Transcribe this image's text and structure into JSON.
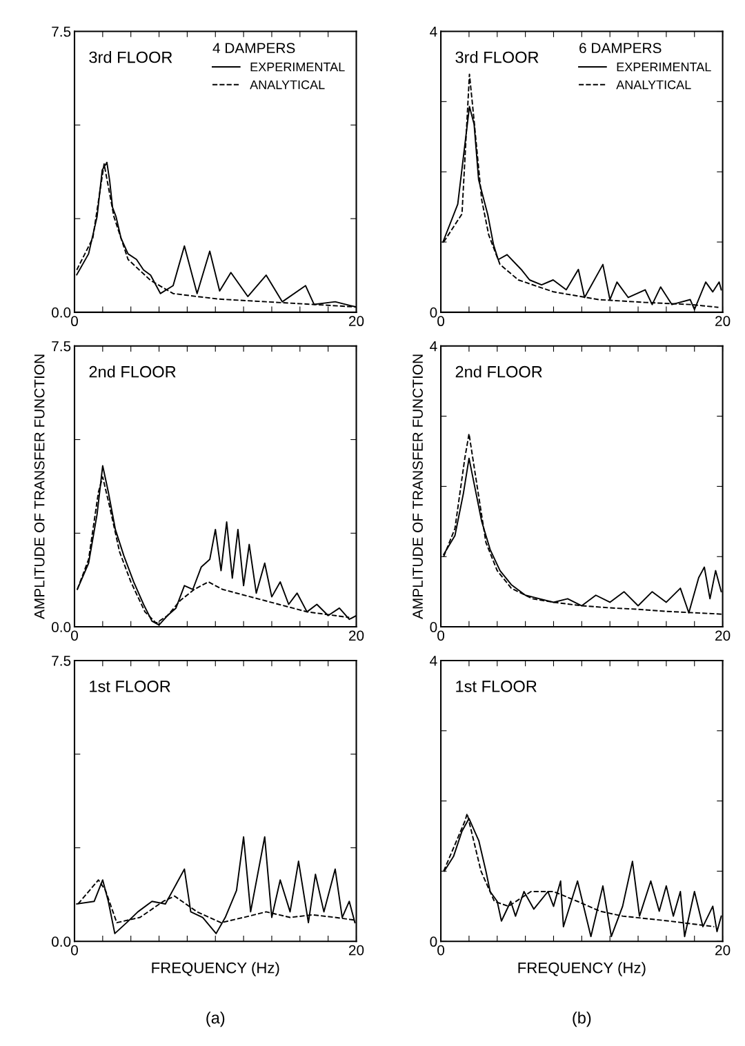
{
  "chart_data": [
    {
      "type": "line",
      "title": "3rd FLOOR",
      "legend_title": "4 DAMPERS",
      "legend": "top right",
      "xlim": [
        0,
        20
      ],
      "ylim": [
        0,
        7.5
      ],
      "xticks": [
        0,
        {
          "value": 2,
          "label": null
        },
        {
          "value": 4,
          "label": null
        },
        {
          "value": 6,
          "label": null
        },
        {
          "value": 8,
          "label": null
        },
        {
          "value": 10,
          "label": null
        },
        {
          "value": 12,
          "label": null
        },
        {
          "value": 14,
          "label": null
        },
        {
          "value": 16,
          "label": null
        },
        {
          "value": 18,
          "label": null
        },
        20
      ],
      "yticks": [
        {
          "value": 0,
          "label": "0.0"
        },
        {
          "value": 2.5,
          "label": null
        },
        {
          "value": 5,
          "label": null
        },
        7.5
      ],
      "series": [
        {
          "name": "EXPERIMENTAL",
          "color": "#000000",
          "line_style": "solid",
          "x": [
            0.16,
            1.0,
            1.6,
            1.97,
            2.3,
            2.5,
            2.7,
            2.95,
            3.3,
            3.8,
            4.4,
            4.9,
            5.4,
            6.1,
            7.0,
            7.8,
            8.7,
            9.6,
            10.3,
            11.1,
            12.3,
            13.6,
            14.75,
            16.4,
            17.0,
            18.5,
            20.0
          ],
          "values": [
            1.0,
            1.56,
            2.55,
            3.8,
            4.0,
            3.5,
            2.8,
            2.55,
            1.98,
            1.56,
            1.41,
            1.13,
            0.99,
            0.5,
            0.71,
            1.77,
            0.5,
            1.63,
            0.57,
            1.06,
            0.42,
            0.99,
            0.28,
            0.71,
            0.21,
            0.28,
            0.14
          ]
        },
        {
          "name": "ANALYTICAL",
          "color": "#000000",
          "line_style": "dashed",
          "x": [
            0.16,
            1.3,
            2.1,
            2.8,
            3.8,
            5.4,
            7.0,
            8.7,
            10.3,
            13.6,
            16.9,
            20.0
          ],
          "values": [
            1.13,
            1.98,
            3.96,
            2.55,
            1.41,
            0.85,
            0.5,
            0.42,
            0.35,
            0.28,
            0.21,
            0.14
          ]
        }
      ]
    },
    {
      "type": "line",
      "title": "3rd FLOOR",
      "legend_title": "6 DAMPERS",
      "legend": "top right",
      "xlim": [
        0,
        20
      ],
      "ylim": [
        0,
        4
      ],
      "xticks": [
        0,
        {
          "value": 2,
          "label": null
        },
        {
          "value": 4,
          "label": null
        },
        {
          "value": 6,
          "label": null
        },
        {
          "value": 8,
          "label": null
        },
        {
          "value": 10,
          "label": null
        },
        {
          "value": 12,
          "label": null
        },
        {
          "value": 14,
          "label": null
        },
        {
          "value": 16,
          "label": null
        },
        {
          "value": 18,
          "label": null
        },
        20
      ],
      "yticks": [
        0,
        {
          "value": 1,
          "label": null
        },
        {
          "value": 2,
          "label": null
        },
        {
          "value": 3,
          "label": null
        },
        4
      ],
      "series": [
        {
          "name": "EXPERIMENTAL",
          "color": "#000000",
          "line_style": "solid",
          "x": [
            0.15,
            1.2,
            2.03,
            2.36,
            2.68,
            3.33,
            3.74,
            4.07,
            4.7,
            5.7,
            6.3,
            7.15,
            7.97,
            8.9,
            9.76,
            10.2,
            11.5,
            12.0,
            12.5,
            13.3,
            14.5,
            15.0,
            15.6,
            16.4,
            17.7,
            18.0,
            18.8,
            19.3,
            19.75,
            19.9
          ],
          "values": [
            1.0,
            1.54,
            2.93,
            2.68,
            1.89,
            1.39,
            0.96,
            0.75,
            0.82,
            0.61,
            0.46,
            0.39,
            0.46,
            0.32,
            0.61,
            0.21,
            0.68,
            0.18,
            0.43,
            0.21,
            0.32,
            0.11,
            0.36,
            0.11,
            0.18,
            0.04,
            0.43,
            0.29,
            0.43,
            0.32
          ]
        },
        {
          "name": "ANALYTICAL",
          "color": "#000000",
          "line_style": "dashed",
          "x": [
            0.2,
            1.5,
            2.03,
            2.28,
            2.9,
            3.4,
            4.2,
            5.5,
            8.0,
            11.2,
            14.5,
            17.7,
            19.7
          ],
          "values": [
            1.0,
            1.4,
            3.39,
            2.89,
            1.6,
            1.1,
            0.68,
            0.46,
            0.29,
            0.18,
            0.14,
            0.11,
            0.07
          ]
        }
      ]
    },
    {
      "type": "line",
      "title": "2nd FLOOR",
      "ylabel": "AMPLITUDE OF TRANSFER FUNCTION",
      "xlim": [
        0,
        20
      ],
      "ylim": [
        0,
        7.5
      ],
      "xticks": [
        0,
        {
          "value": 2,
          "label": null
        },
        {
          "value": 4,
          "label": null
        },
        {
          "value": 6,
          "label": null
        },
        {
          "value": 8,
          "label": null
        },
        {
          "value": 10,
          "label": null
        },
        {
          "value": 12,
          "label": null
        },
        {
          "value": 14,
          "label": null
        },
        {
          "value": 16,
          "label": null
        },
        {
          "value": 18,
          "label": null
        },
        20
      ],
      "yticks": [
        {
          "value": 0,
          "label": "0.0"
        },
        {
          "value": 2.5,
          "label": null
        },
        {
          "value": 5,
          "label": null
        },
        7.5
      ],
      "series": [
        {
          "color": "#000000",
          "line_style": "solid",
          "x": [
            0.2,
            1.0,
            1.6,
            2.0,
            2.4,
            2.9,
            3.5,
            4.2,
            4.9,
            5.5,
            6.0,
            6.6,
            7.2,
            7.8,
            8.4,
            9.0,
            9.6,
            10.0,
            10.4,
            10.8,
            11.2,
            11.6,
            12.0,
            12.4,
            12.9,
            13.5,
            14.0,
            14.6,
            15.2,
            15.8,
            16.5,
            17.2,
            18.0,
            18.8,
            19.5,
            20.0
          ],
          "values": [
            1.0,
            1.7,
            3.0,
            4.3,
            3.6,
            2.6,
            1.9,
            1.2,
            0.6,
            0.15,
            0.05,
            0.3,
            0.5,
            1.1,
            1.0,
            1.6,
            1.8,
            2.6,
            1.5,
            2.8,
            1.3,
            2.6,
            1.1,
            2.2,
            0.9,
            1.7,
            0.8,
            1.2,
            0.6,
            0.9,
            0.4,
            0.6,
            0.3,
            0.5,
            0.2,
            0.3
          ]
        },
        {
          "color": "#000000",
          "line_style": "dashed",
          "x": [
            0.2,
            1.0,
            1.7,
            2.0,
            2.5,
            3.2,
            4.0,
            5.0,
            5.8,
            6.6,
            7.5,
            8.5,
            9.5,
            10.5,
            11.5,
            12.5,
            13.5,
            14.5,
            15.5,
            16.5,
            17.5,
            18.5,
            19.5
          ],
          "values": [
            1.0,
            1.8,
            3.6,
            4.0,
            3.2,
            2.0,
            1.2,
            0.4,
            0.1,
            0.3,
            0.7,
            1.0,
            1.2,
            1.0,
            0.9,
            0.8,
            0.7,
            0.6,
            0.5,
            0.4,
            0.35,
            0.3,
            0.25
          ]
        }
      ]
    },
    {
      "type": "line",
      "title": "2nd FLOOR",
      "ylabel": "AMPLITUDE OF TRANSFER FUNCTION",
      "xlim": [
        0,
        20
      ],
      "ylim": [
        0,
        4
      ],
      "xticks": [
        0,
        {
          "value": 2,
          "label": null
        },
        {
          "value": 4,
          "label": null
        },
        {
          "value": 6,
          "label": null
        },
        {
          "value": 8,
          "label": null
        },
        {
          "value": 10,
          "label": null
        },
        {
          "value": 12,
          "label": null
        },
        {
          "value": 14,
          "label": null
        },
        {
          "value": 16,
          "label": null
        },
        {
          "value": 18,
          "label": null
        },
        20
      ],
      "yticks": [
        0,
        {
          "value": 1,
          "label": null
        },
        {
          "value": 2,
          "label": null
        },
        {
          "value": 3,
          "label": null
        },
        4
      ],
      "series": [
        {
          "color": "#000000",
          "line_style": "solid",
          "x": [
            0.2,
            1.0,
            1.6,
            2.0,
            2.4,
            2.9,
            3.5,
            4.2,
            5.0,
            6.0,
            7.0,
            8.0,
            9.0,
            10.0,
            11.0,
            12.0,
            13.0,
            14.0,
            15.0,
            16.0,
            17.0,
            17.6,
            18.3,
            18.7,
            19.1,
            19.5,
            19.9
          ],
          "values": [
            1.03,
            1.3,
            1.9,
            2.4,
            2.0,
            1.5,
            1.1,
            0.8,
            0.6,
            0.45,
            0.4,
            0.35,
            0.4,
            0.3,
            0.45,
            0.35,
            0.5,
            0.3,
            0.5,
            0.35,
            0.55,
            0.2,
            0.7,
            0.85,
            0.4,
            0.8,
            0.5
          ]
        },
        {
          "color": "#000000",
          "line_style": "dashed",
          "x": [
            0.2,
            1.0,
            1.7,
            2.0,
            2.5,
            3.2,
            4.0,
            5.0,
            6.5,
            8.0,
            10.0,
            12.0,
            14.0,
            16.0,
            18.0,
            20.0
          ],
          "values": [
            1.0,
            1.4,
            2.4,
            2.75,
            2.1,
            1.2,
            0.8,
            0.55,
            0.4,
            0.35,
            0.3,
            0.27,
            0.25,
            0.22,
            0.2,
            0.18
          ]
        }
      ]
    },
    {
      "type": "line",
      "title": "1st FLOOR",
      "xlabel": "FREQUENCY (Hz)",
      "annotations": [
        "(a)"
      ],
      "xlim": [
        0,
        20
      ],
      "ylim": [
        0,
        7.5
      ],
      "xticks": [
        0,
        {
          "value": 2,
          "label": null
        },
        {
          "value": 4,
          "label": null
        },
        {
          "value": 6,
          "label": null
        },
        {
          "value": 8,
          "label": null
        },
        {
          "value": 10,
          "label": null
        },
        {
          "value": 12,
          "label": null
        },
        {
          "value": 14,
          "label": null
        },
        {
          "value": 16,
          "label": null
        },
        {
          "value": 18,
          "label": null
        },
        20
      ],
      "yticks": [
        {
          "value": 0,
          "label": "0.0"
        },
        {
          "value": 2.5,
          "label": null
        },
        {
          "value": 5,
          "label": null
        },
        7.5
      ],
      "series": [
        {
          "color": "#000000",
          "line_style": "solid",
          "x": [
            0.16,
            1.4,
            2.0,
            2.4,
            2.86,
            3.7,
            4.5,
            5.5,
            6.45,
            7.8,
            8.25,
            9.1,
            10.05,
            10.7,
            11.5,
            12.0,
            12.5,
            13.5,
            14.0,
            14.6,
            15.3,
            15.9,
            16.6,
            17.1,
            17.7,
            18.5,
            19.0,
            19.5,
            19.9
          ],
          "values": [
            1.0,
            1.07,
            1.64,
            1.07,
            0.21,
            0.5,
            0.79,
            1.07,
            1.0,
            1.93,
            0.79,
            0.64,
            0.21,
            0.64,
            1.36,
            2.79,
            0.79,
            2.79,
            0.64,
            1.64,
            0.79,
            2.14,
            0.5,
            1.79,
            0.79,
            1.93,
            0.64,
            1.07,
            0.5
          ]
        },
        {
          "color": "#000000",
          "line_style": "dashed",
          "x": [
            0.25,
            1.7,
            2.2,
            3.0,
            4.65,
            6.3,
            7.1,
            8.7,
            10.4,
            12.0,
            13.6,
            15.3,
            16.9,
            18.5,
            19.85
          ],
          "values": [
            1.0,
            1.64,
            1.36,
            0.5,
            0.64,
            1.07,
            1.21,
            0.79,
            0.5,
            0.64,
            0.79,
            0.64,
            0.71,
            0.64,
            0.57
          ]
        }
      ]
    },
    {
      "type": "line",
      "title": "1st FLOOR",
      "xlabel": "FREQUENCY (Hz)",
      "annotations": [
        "(b)"
      ],
      "xlim": [
        0,
        20
      ],
      "ylim": [
        0,
        4
      ],
      "xticks": [
        0,
        {
          "value": 2,
          "label": null
        },
        {
          "value": 4,
          "label": null
        },
        {
          "value": 6,
          "label": null
        },
        {
          "value": 8,
          "label": null
        },
        {
          "value": 10,
          "label": null
        },
        {
          "value": 12,
          "label": null
        },
        {
          "value": 14,
          "label": null
        },
        {
          "value": 16,
          "label": null
        },
        {
          "value": 18,
          "label": null
        },
        20
      ],
      "yticks": [
        0,
        {
          "value": 1,
          "label": null
        },
        {
          "value": 2,
          "label": null
        },
        {
          "value": 3,
          "label": null
        },
        4
      ],
      "series": [
        {
          "color": "#000000",
          "line_style": "solid",
          "x": [
            0.24,
            0.9,
            1.5,
            2.0,
            2.7,
            3.2,
            3.5,
            4.0,
            4.3,
            4.96,
            5.3,
            5.9,
            6.6,
            7.6,
            8.0,
            8.5,
            8.7,
            9.7,
            10.65,
            11.5,
            12.1,
            12.9,
            13.6,
            14.1,
            14.9,
            15.5,
            16.0,
            16.5,
            17.0,
            17.3,
            18.0,
            18.6,
            19.3,
            19.6,
            19.9
          ],
          "values": [
            1.0,
            1.21,
            1.57,
            1.75,
            1.43,
            1.0,
            0.71,
            0.57,
            0.29,
            0.57,
            0.36,
            0.71,
            0.46,
            0.71,
            0.5,
            0.86,
            0.21,
            0.86,
            0.07,
            0.79,
            0.07,
            0.5,
            1.14,
            0.36,
            0.86,
            0.43,
            0.79,
            0.36,
            0.71,
            0.07,
            0.71,
            0.21,
            0.5,
            0.14,
            0.36
          ]
        },
        {
          "color": "#000000",
          "line_style": "dashed",
          "x": [
            0.2,
            1.7,
            1.87,
            2.85,
            3.8,
            4.8,
            6.4,
            8.0,
            9.7,
            11.3,
            12.9,
            16.2,
            19.4
          ],
          "values": [
            1.0,
            1.71,
            1.82,
            1.0,
            0.57,
            0.5,
            0.71,
            0.71,
            0.57,
            0.43,
            0.36,
            0.29,
            0.21
          ]
        }
      ]
    }
  ]
}
